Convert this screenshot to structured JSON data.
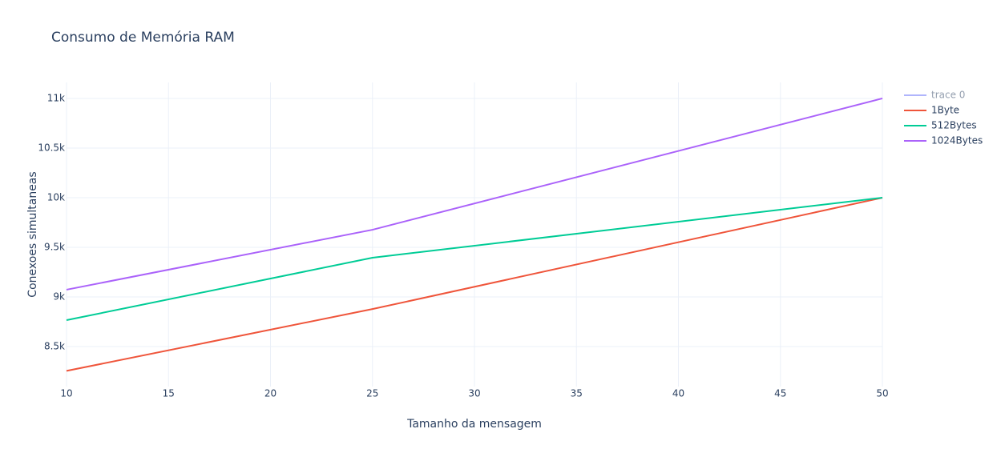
{
  "chart_data": {
    "type": "line",
    "title": "Consumo de Memória RAM",
    "x_label": "Tamanho da mensagem",
    "y_label": "Conexoes simultaneas",
    "x": [
      10,
      25,
      50
    ],
    "series": [
      {
        "name": "trace 0",
        "color": "#636efa",
        "visible": "legendonly",
        "values": [
          null,
          null,
          null
        ]
      },
      {
        "name": "1Byte",
        "color": "#EF553B",
        "values": [
          8255,
          8878,
          10000
        ]
      },
      {
        "name": "512Bytes",
        "color": "#00cc96",
        "values": [
          8766,
          9395,
          10000
        ]
      },
      {
        "name": "1024Bytes",
        "color": "#ab63fa",
        "values": [
          9073,
          9677,
          11000
        ]
      }
    ],
    "xlim": [
      10,
      50
    ],
    "xticks": [
      10,
      15,
      20,
      25,
      30,
      35,
      40,
      45,
      50
    ],
    "ylim": [
      8097,
      11161
    ],
    "yticks": [
      {
        "value": 8500,
        "label": "8.5k"
      },
      {
        "value": 9000,
        "label": "9k"
      },
      {
        "value": 9500,
        "label": "9.5k"
      },
      {
        "value": 10000,
        "label": "10k"
      },
      {
        "value": 10500,
        "label": "10.5k"
      },
      {
        "value": 11000,
        "label": "11k"
      }
    ],
    "grid": true,
    "legend": "right"
  }
}
